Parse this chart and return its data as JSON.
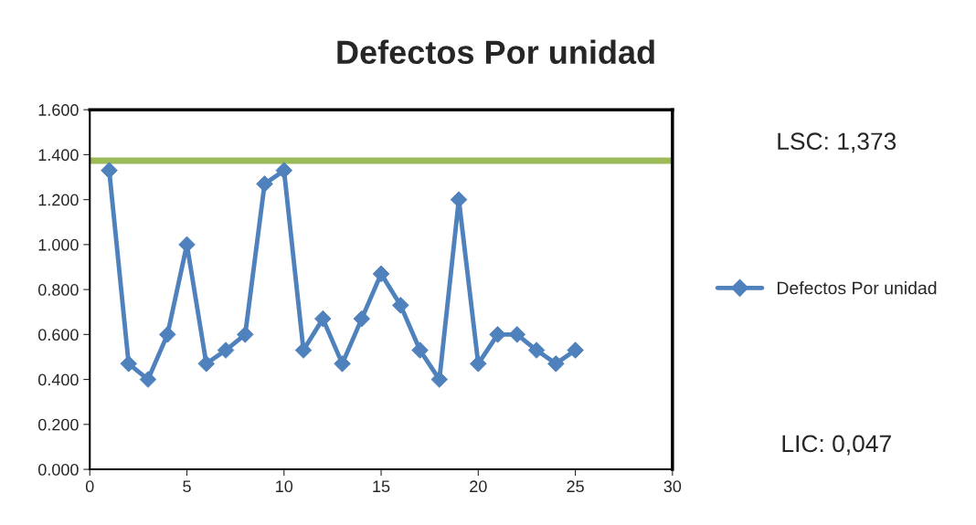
{
  "chart_data": {
    "type": "line",
    "title": "Defectos Por unidad",
    "x": [
      1,
      2,
      3,
      4,
      5,
      6,
      7,
      8,
      9,
      10,
      11,
      12,
      13,
      14,
      15,
      16,
      17,
      18,
      19,
      20,
      21,
      22,
      23,
      24,
      25
    ],
    "series": [
      {
        "name": "Defectos Por unidad",
        "color": "#4f81bd",
        "values": [
          1.33,
          0.47,
          0.4,
          0.6,
          1.0,
          0.47,
          0.53,
          0.6,
          1.27,
          1.33,
          0.53,
          0.67,
          0.47,
          0.67,
          0.87,
          0.73,
          0.53,
          0.4,
          1.2,
          0.47,
          0.6,
          0.6,
          0.53,
          0.47,
          0.53
        ]
      }
    ],
    "xlim": [
      0,
      30
    ],
    "xticks": [
      0,
      5,
      10,
      15,
      20,
      25,
      30
    ],
    "ylim": [
      0,
      1.6
    ],
    "yticks": [
      {
        "value": 0,
        "label": "0.000"
      },
      {
        "value": 0.2,
        "label": "0.200"
      },
      {
        "value": 0.4,
        "label": "0.400"
      },
      {
        "value": 0.6,
        "label": "0.600"
      },
      {
        "value": 0.8,
        "label": "0.800"
      },
      {
        "value": 1.0,
        "label": "1.000"
      },
      {
        "value": 1.2,
        "label": "1.200"
      },
      {
        "value": 1.4,
        "label": "1.400"
      },
      {
        "value": 1.6,
        "label": "1.600"
      }
    ],
    "ref_lines": [
      {
        "axis": "y",
        "value": 1.373,
        "color": "#9bbb59"
      }
    ],
    "annotations": [
      "LSC: 1,373",
      "LIC: 0,047"
    ],
    "marker": "diamond",
    "grid": false,
    "legend": "right"
  }
}
